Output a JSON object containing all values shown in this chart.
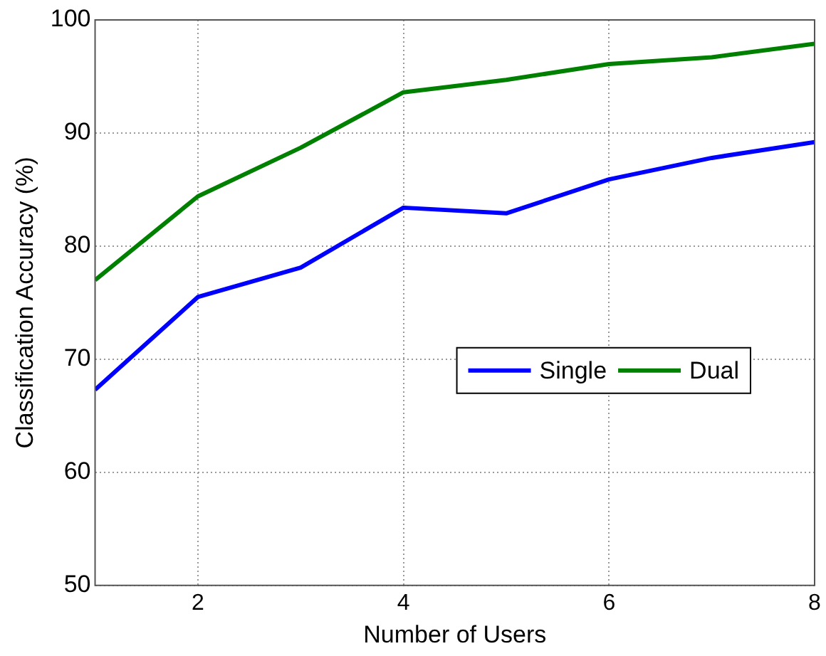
{
  "chart_data": {
    "type": "line",
    "xlabel": "Number of Users",
    "ylabel": "Classification Accuracy (%)",
    "x": [
      1,
      2,
      3,
      4,
      5,
      6,
      7,
      8
    ],
    "series": [
      {
        "name": "Single",
        "color": "#0000ff",
        "values": [
          67.3,
          75.5,
          78.1,
          83.4,
          82.9,
          85.9,
          87.8,
          89.2
        ]
      },
      {
        "name": "Dual",
        "color": "#008000",
        "values": [
          77.0,
          84.4,
          88.7,
          93.6,
          94.7,
          96.1,
          96.7,
          97.9
        ]
      }
    ],
    "xlim": [
      1,
      8
    ],
    "xticks": [
      2,
      4,
      6,
      8
    ],
    "ylim": [
      50,
      100
    ],
    "yticks": [
      50,
      60,
      70,
      80,
      90,
      100
    ],
    "grid": true,
    "legend": "right",
    "marker": "none",
    "line_style": "solid"
  }
}
